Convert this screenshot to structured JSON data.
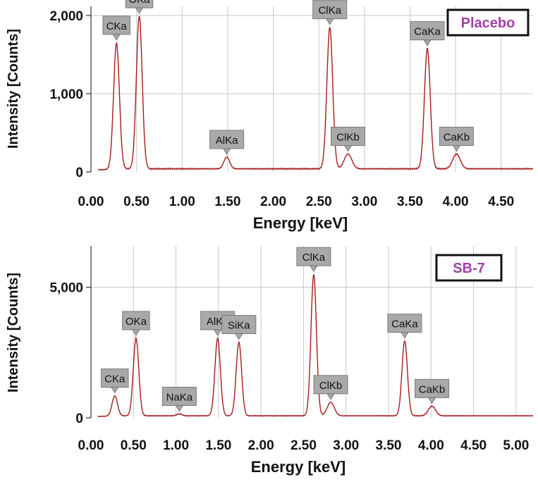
{
  "colors": {
    "spectrum": "#a81c1c",
    "grid": "#c8c8c8",
    "label_box": "#a9a9a9",
    "sample_label": "#a040a8"
  },
  "chart_data": [
    {
      "type": "line",
      "sample_label": "Placebo",
      "xlabel": "Energy [keV]",
      "ylabel": "Intensity [Counts]",
      "xlim": [
        0,
        4.85
      ],
      "ylim": [
        0,
        2000
      ],
      "x_ticks": [
        "0.00",
        "0.50",
        "1.00",
        "1.50",
        "2.00",
        "2.50",
        "3.00",
        "3.50",
        "4.00",
        "4.50"
      ],
      "y_ticks": [
        "0",
        "1,000",
        "2,000"
      ],
      "baseline": 40,
      "peaks": [
        {
          "label": "CKa",
          "x": 0.28,
          "y": 1650
        },
        {
          "label": "OKa",
          "x": 0.53,
          "y": 1990
        },
        {
          "label": "AlKa",
          "x": 1.49,
          "y": 190
        },
        {
          "label": "ClKa",
          "x": 2.62,
          "y": 1850
        },
        {
          "label": "ClKb",
          "x": 2.82,
          "y": 230
        },
        {
          "label": "CaKa",
          "x": 3.69,
          "y": 1580
        },
        {
          "label": "CaKb",
          "x": 4.01,
          "y": 230
        }
      ]
    },
    {
      "type": "line",
      "sample_label": "SB-7",
      "xlabel": "Energy [keV]",
      "ylabel": "Intensity [Counts]",
      "xlim": [
        0,
        5.2
      ],
      "ylim": [
        0,
        5800
      ],
      "x_ticks": [
        "0.00",
        "0.50",
        "1.00",
        "1.50",
        "2.00",
        "2.50",
        "3.00",
        "3.50",
        "4.00",
        "4.50",
        "5.00"
      ],
      "y_ticks": [
        "0",
        "5,000"
      ],
      "baseline": 80,
      "peaks": [
        {
          "label": "CKa",
          "x": 0.28,
          "y": 850
        },
        {
          "label": "OKa",
          "x": 0.53,
          "y": 3050
        },
        {
          "label": "NaKa",
          "x": 1.04,
          "y": 150
        },
        {
          "label": "AlKa",
          "x": 1.49,
          "y": 3050
        },
        {
          "label": "SiKa",
          "x": 1.74,
          "y": 2900
        },
        {
          "label": "ClKa",
          "x": 2.62,
          "y": 5500
        },
        {
          "label": "ClKb",
          "x": 2.82,
          "y": 600
        },
        {
          "label": "CaKa",
          "x": 3.69,
          "y": 2950
        },
        {
          "label": "CaKb",
          "x": 4.01,
          "y": 450
        }
      ]
    }
  ]
}
